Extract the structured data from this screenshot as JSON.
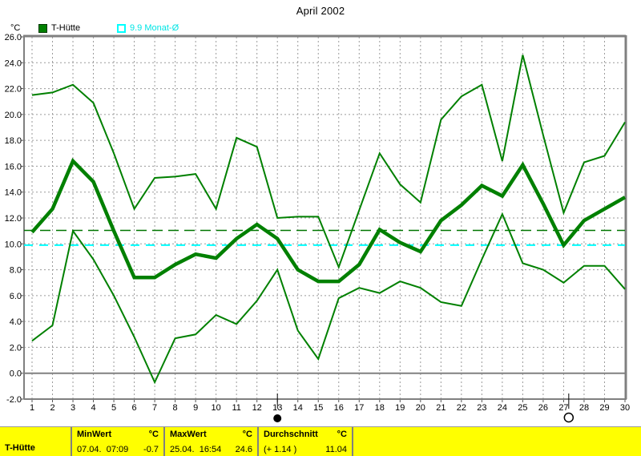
{
  "window": {
    "title": "April 2002"
  },
  "legend": {
    "axis_unit": "°C",
    "items": [
      {
        "label": "T-Hütte",
        "color": "#008000",
        "swatch": "filled"
      },
      {
        "label": "9.9 Monat-Ø",
        "color": "#00ffff",
        "swatch": "outline"
      }
    ]
  },
  "chart_data": {
    "type": "line",
    "title": "April 2002",
    "xlabel": "",
    "ylabel": "°C",
    "grid": true,
    "legend_position": "top-left",
    "x": [
      1,
      2,
      3,
      4,
      5,
      6,
      7,
      8,
      9,
      10,
      11,
      12,
      13,
      14,
      15,
      16,
      17,
      18,
      19,
      20,
      21,
      22,
      23,
      24,
      25,
      26,
      27,
      28,
      29,
      30
    ],
    "xlim": [
      1,
      30
    ],
    "ylim": [
      -2.0,
      26.0
    ],
    "ytick_step": 2.0,
    "series": [
      {
        "name": "max",
        "color": "#008000",
        "width": 2,
        "values": [
          21.5,
          21.7,
          22.3,
          20.9,
          17.0,
          12.7,
          15.1,
          15.2,
          15.4,
          12.7,
          18.2,
          17.5,
          12.0,
          12.1,
          12.1,
          8.2,
          12.6,
          17.0,
          14.6,
          13.2,
          19.6,
          21.4,
          22.3,
          16.4,
          24.6,
          18.4,
          12.4,
          16.3,
          16.8,
          19.4
        ]
      },
      {
        "name": "mean",
        "color": "#008000",
        "width": 4.5,
        "values": [
          10.9,
          12.7,
          16.4,
          14.8,
          11.0,
          7.4,
          7.4,
          8.4,
          9.2,
          8.9,
          10.4,
          11.5,
          10.4,
          8.0,
          7.1,
          7.1,
          8.4,
          11.1,
          10.1,
          9.4,
          11.8,
          13.0,
          14.5,
          13.7,
          16.1,
          13.1,
          9.9,
          11.8,
          12.7,
          13.6
        ]
      },
      {
        "name": "min",
        "color": "#008000",
        "width": 2,
        "values": [
          2.5,
          3.7,
          11.0,
          8.8,
          6.0,
          2.8,
          -0.7,
          2.7,
          3.0,
          4.5,
          3.8,
          5.6,
          8.0,
          3.3,
          1.1,
          5.8,
          6.6,
          6.2,
          7.1,
          6.6,
          5.5,
          5.2,
          8.8,
          12.3,
          8.5,
          8.0,
          7.0,
          8.3,
          8.3,
          6.5
        ]
      }
    ],
    "reference_lines": [
      {
        "name": "durchschnitt",
        "value": 11.04,
        "color": "#007500",
        "dash": "13 7",
        "width": 1.5
      },
      {
        "name": "monat-durchschnitt",
        "value": 9.9,
        "color": "#00ffff",
        "dash": "11 8",
        "width": 2
      }
    ],
    "markers": [
      {
        "day": 13,
        "type": "new-moon"
      },
      {
        "day": 27.25,
        "type": "full-moon"
      }
    ]
  },
  "status_bar": {
    "station": "T-Hütte",
    "min": {
      "label": "MinWert",
      "unit": "°C",
      "datetime": "07.04.  07:09",
      "value": "-0.7"
    },
    "max": {
      "label": "MaxWert",
      "unit": "°C",
      "datetime": "25.04.  16:54",
      "value": "24.6"
    },
    "avg": {
      "label": "Durchschnitt",
      "unit": "°C",
      "detail": "(+ 1.14 )",
      "value": "11.04"
    }
  }
}
